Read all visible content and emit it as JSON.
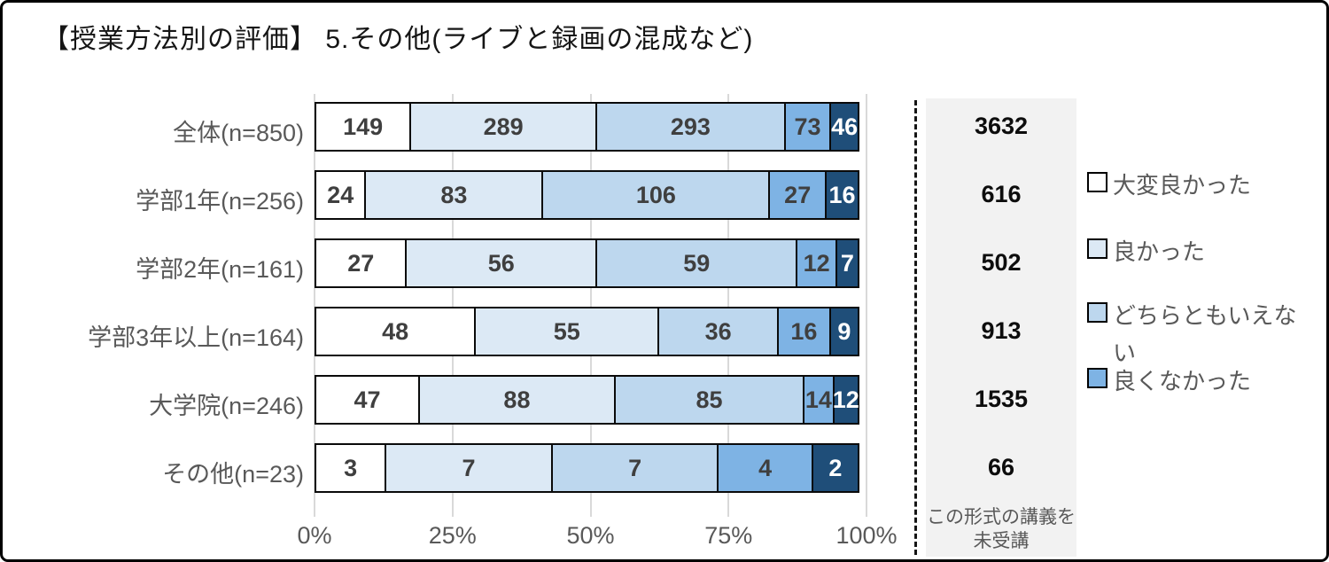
{
  "title": "【授業方法別の評価】 5.その他(ライブと録画の混成など)",
  "colors": {
    "segment_palette": [
      "#ffffff",
      "#dce9f5",
      "#bdd7ee",
      "#7eb3e4",
      "#1f4e79"
    ],
    "grid": "#d9d9d9",
    "panel_background": "#f2f2f2",
    "muted_text": "#595959",
    "bar_number_text": "#3f3f3f",
    "bar_number_text_on_dark": "#ffffff",
    "bar_border": "#0a0a0a"
  },
  "chart_data": {
    "type": "bar",
    "stacked": true,
    "orientation": "horizontal",
    "title": "【授業方法別の評価】 5.その他(ライブと録画の混成など)",
    "categories": [
      "全体(n=850)",
      "学部1年(n=256)",
      "学部2年(n=161)",
      "学部3年以上(n=164)",
      "大学院(n=246)",
      "その他(n=23)"
    ],
    "series": [
      {
        "name": "大変良かった",
        "color": "#ffffff",
        "values": [
          149,
          24,
          27,
          48,
          47,
          3
        ]
      },
      {
        "name": "良かった",
        "color": "#dce9f5",
        "values": [
          289,
          83,
          56,
          55,
          88,
          7
        ]
      },
      {
        "name": "どちらともいえない",
        "color": "#bdd7ee",
        "values": [
          293,
          106,
          59,
          36,
          85,
          7
        ]
      },
      {
        "name": "良くなかった",
        "color": "#7eb3e4",
        "values": [
          73,
          27,
          12,
          16,
          14,
          4
        ]
      },
      {
        "name": "",
        "color": "#1f4e79",
        "values": [
          46,
          16,
          7,
          9,
          12,
          2
        ]
      }
    ],
    "x_ticks": [
      "0%",
      "25%",
      "50%",
      "75%",
      "100%"
    ],
    "xlim": [
      0,
      100
    ],
    "grid": true,
    "legend_position": "right",
    "legend_visible_entries": [
      "大変良かった",
      "良かった",
      "どちらともいえない",
      "良くなかった"
    ],
    "right_column": {
      "values": [
        3632,
        616,
        502,
        913,
        1535,
        66
      ],
      "footer": "この形式の講義を未受講"
    }
  }
}
